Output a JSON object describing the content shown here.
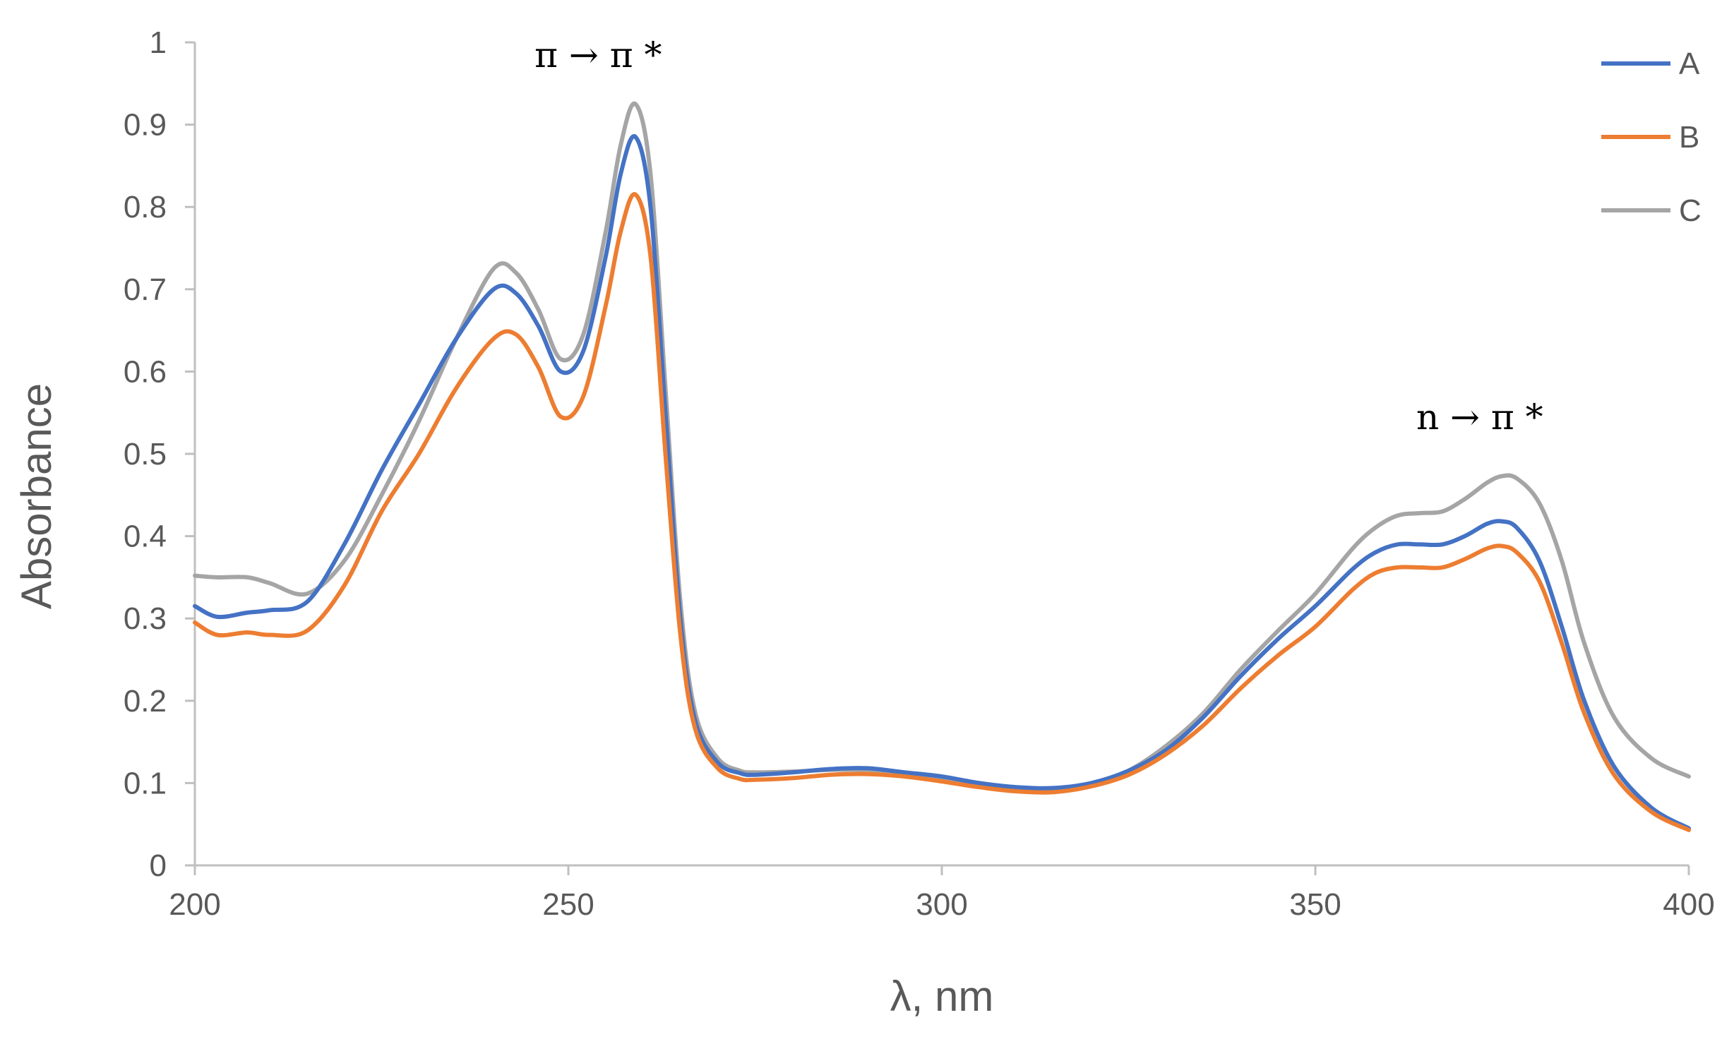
{
  "chart_data": {
    "type": "line",
    "title": "",
    "xlabel": "λ, nm",
    "ylabel": "Absorbance",
    "xlim": [
      200,
      400
    ],
    "ylim": [
      0,
      1
    ],
    "x_ticks": [
      "200",
      "250",
      "300",
      "350",
      "400"
    ],
    "y_ticks": [
      "0",
      "0.1",
      "0.2",
      "0.3",
      "0.4",
      "0.5",
      "0.6",
      "0.7",
      "0.8",
      "0.9",
      "1"
    ],
    "grid": false,
    "legend_position": "top-right",
    "annotations": [
      {
        "text": "π → π *",
        "x": 254,
        "y": 0.97
      },
      {
        "text": "n → π *",
        "x": 372,
        "y": 0.53
      }
    ],
    "series": [
      {
        "name": "A",
        "color": "#4472C4",
        "x": [
          200,
          203,
          207,
          210,
          215,
          220,
          225,
          230,
          235,
          240,
          243,
          246,
          249,
          252,
          255,
          257,
          259,
          261,
          263,
          265,
          267,
          270,
          273,
          275,
          280,
          285,
          290,
          295,
          300,
          305,
          310,
          315,
          320,
          325,
          330,
          335,
          340,
          345,
          350,
          355,
          358,
          361,
          364,
          367,
          370,
          373,
          375,
          377,
          380,
          383,
          386,
          390,
          395,
          400
        ],
        "y": [
          0.315,
          0.302,
          0.307,
          0.31,
          0.32,
          0.39,
          0.48,
          0.56,
          0.64,
          0.7,
          0.695,
          0.655,
          0.6,
          0.625,
          0.74,
          0.84,
          0.885,
          0.8,
          0.55,
          0.3,
          0.175,
          0.125,
          0.112,
          0.11,
          0.113,
          0.117,
          0.118,
          0.113,
          0.108,
          0.1,
          0.095,
          0.094,
          0.1,
          0.115,
          0.14,
          0.18,
          0.23,
          0.275,
          0.315,
          0.36,
          0.38,
          0.39,
          0.39,
          0.39,
          0.4,
          0.415,
          0.418,
          0.41,
          0.37,
          0.29,
          0.2,
          0.12,
          0.07,
          0.045
        ]
      },
      {
        "name": "B",
        "color": "#ED7D31",
        "x": [
          200,
          203,
          207,
          210,
          215,
          220,
          225,
          230,
          235,
          240,
          243,
          246,
          249,
          252,
          255,
          257,
          259,
          261,
          263,
          265,
          267,
          270,
          273,
          275,
          280,
          285,
          290,
          295,
          300,
          305,
          310,
          315,
          320,
          325,
          330,
          335,
          340,
          345,
          350,
          355,
          358,
          361,
          364,
          367,
          370,
          373,
          375,
          377,
          380,
          383,
          386,
          390,
          395,
          400
        ],
        "y": [
          0.295,
          0.28,
          0.283,
          0.28,
          0.285,
          0.34,
          0.43,
          0.5,
          0.58,
          0.64,
          0.645,
          0.605,
          0.545,
          0.57,
          0.68,
          0.77,
          0.815,
          0.74,
          0.5,
          0.28,
          0.165,
          0.118,
          0.105,
          0.104,
          0.106,
          0.11,
          0.111,
          0.108,
          0.102,
          0.095,
          0.09,
          0.089,
          0.096,
          0.11,
          0.135,
          0.17,
          0.215,
          0.255,
          0.29,
          0.335,
          0.355,
          0.362,
          0.362,
          0.362,
          0.372,
          0.385,
          0.388,
          0.38,
          0.345,
          0.27,
          0.185,
          0.11,
          0.065,
          0.043
        ]
      },
      {
        "name": "C",
        "color": "#A5A5A5",
        "x": [
          200,
          203,
          207,
          210,
          215,
          220,
          225,
          230,
          235,
          240,
          243,
          246,
          249,
          252,
          255,
          257,
          259,
          261,
          263,
          265,
          267,
          270,
          273,
          275,
          280,
          285,
          290,
          295,
          300,
          305,
          310,
          315,
          320,
          325,
          330,
          335,
          340,
          345,
          350,
          355,
          358,
          361,
          364,
          367,
          370,
          373,
          375,
          377,
          380,
          383,
          386,
          390,
          395,
          400
        ],
        "y": [
          0.352,
          0.35,
          0.35,
          0.343,
          0.33,
          0.37,
          0.45,
          0.54,
          0.64,
          0.725,
          0.72,
          0.675,
          0.615,
          0.645,
          0.77,
          0.875,
          0.925,
          0.84,
          0.58,
          0.32,
          0.185,
          0.13,
          0.115,
          0.113,
          0.114,
          0.116,
          0.116,
          0.112,
          0.105,
          0.098,
          0.093,
          0.092,
          0.098,
          0.115,
          0.145,
          0.185,
          0.238,
          0.285,
          0.33,
          0.385,
          0.41,
          0.425,
          0.428,
          0.43,
          0.445,
          0.465,
          0.473,
          0.47,
          0.44,
          0.37,
          0.27,
          0.18,
          0.13,
          0.108
        ]
      }
    ]
  }
}
